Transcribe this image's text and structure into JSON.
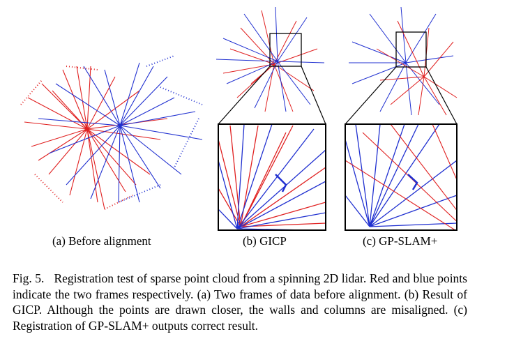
{
  "panels": [
    {
      "label": "(a) Before alignment"
    },
    {
      "label": "(b) GICP"
    },
    {
      "label": "(c) GP-SLAM+"
    }
  ],
  "caption": {
    "label": "Fig. 5.",
    "text": "Registration test of sparse point cloud from a spinning 2D lidar. Red and blue points indicate the two frames respectively. (a) Two frames of data before alignment. (b) Result of GICP. Although the points are drawn closer, the walls and columns are misaligned. (c) Registration of GP-SLAM+ outputs correct result."
  }
}
